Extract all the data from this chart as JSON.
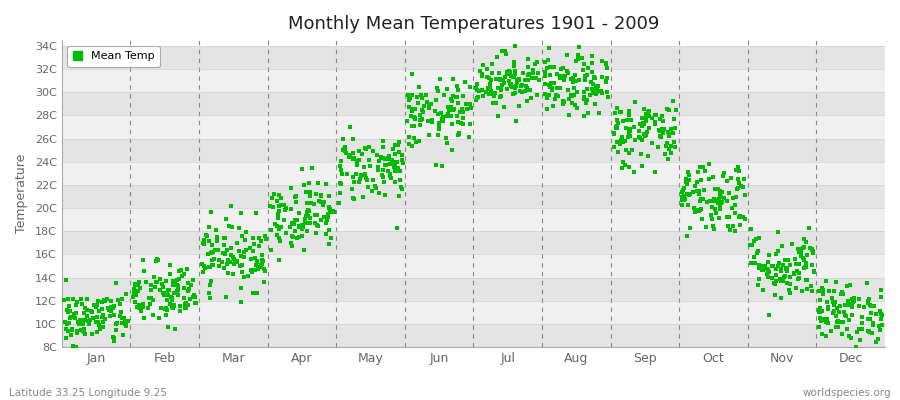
{
  "title": "Monthly Mean Temperatures 1901 - 2009",
  "ylabel": "Temperature",
  "bottom_left": "Latitude 33.25 Longitude 9.25",
  "bottom_right": "worldspecies.org",
  "legend_label": "Mean Temp",
  "dot_color": "#00BB00",
  "background_color": "#FFFFFF",
  "band_color_light": "#F0F0F0",
  "band_color_dark": "#E4E4E4",
  "yticks": [
    8,
    10,
    12,
    14,
    16,
    18,
    20,
    22,
    24,
    26,
    28,
    30,
    32,
    34
  ],
  "ylim": [
    8,
    34.5
  ],
  "months": [
    "Jan",
    "Feb",
    "Mar",
    "Apr",
    "May",
    "Jun",
    "Jul",
    "Aug",
    "Sep",
    "Oct",
    "Nov",
    "Dec"
  ],
  "monthly_means": [
    10.5,
    12.5,
    16.0,
    19.5,
    23.5,
    28.0,
    31.0,
    30.5,
    26.5,
    21.0,
    15.0,
    11.0
  ],
  "monthly_stds": [
    1.2,
    1.4,
    1.5,
    1.5,
    1.5,
    1.5,
    1.2,
    1.3,
    1.5,
    1.6,
    1.5,
    1.3
  ],
  "seed": 42,
  "n_years": 109
}
